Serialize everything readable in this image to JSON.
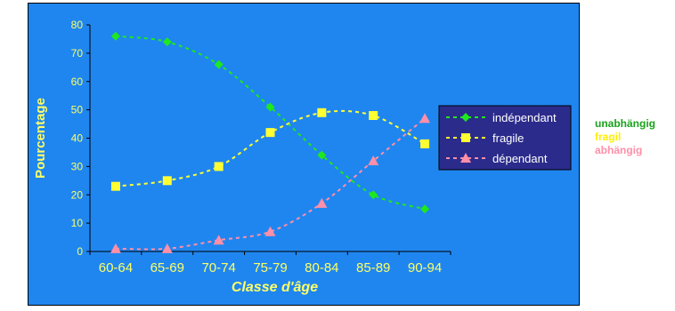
{
  "chart_data": {
    "type": "line",
    "title": "",
    "xlabel": "Classe d'âge",
    "ylabel": "Pourcentage",
    "categories": [
      "60-64",
      "65-69",
      "70-74",
      "75-79",
      "80-84",
      "85-89",
      "90-94"
    ],
    "ylim": [
      0,
      80
    ],
    "yticks": [
      0,
      10,
      20,
      30,
      40,
      50,
      60,
      70,
      80
    ],
    "grid": false,
    "legend_position": "right",
    "background_color": "#1f86f0",
    "label_color": "#ffff66",
    "series": [
      {
        "name": "indépendant",
        "values": [
          76,
          74,
          66,
          51,
          34,
          20,
          15
        ],
        "color": "#1ee81e",
        "marker": "diamond"
      },
      {
        "name": "fragile",
        "values": [
          23,
          25,
          30,
          42,
          49,
          48,
          38
        ],
        "color": "#ffff33",
        "marker": "square"
      },
      {
        "name": "dépendant",
        "values": [
          1,
          1,
          4,
          7,
          17,
          32,
          47
        ],
        "color": "#ff8fa8",
        "marker": "triangle"
      }
    ]
  },
  "side_labels": [
    {
      "text": "unabhängig",
      "color": "#1aa21a"
    },
    {
      "text": "fragil",
      "color": "#ffee00"
    },
    {
      "text": "abhängig",
      "color": "#ff8fa8"
    }
  ]
}
